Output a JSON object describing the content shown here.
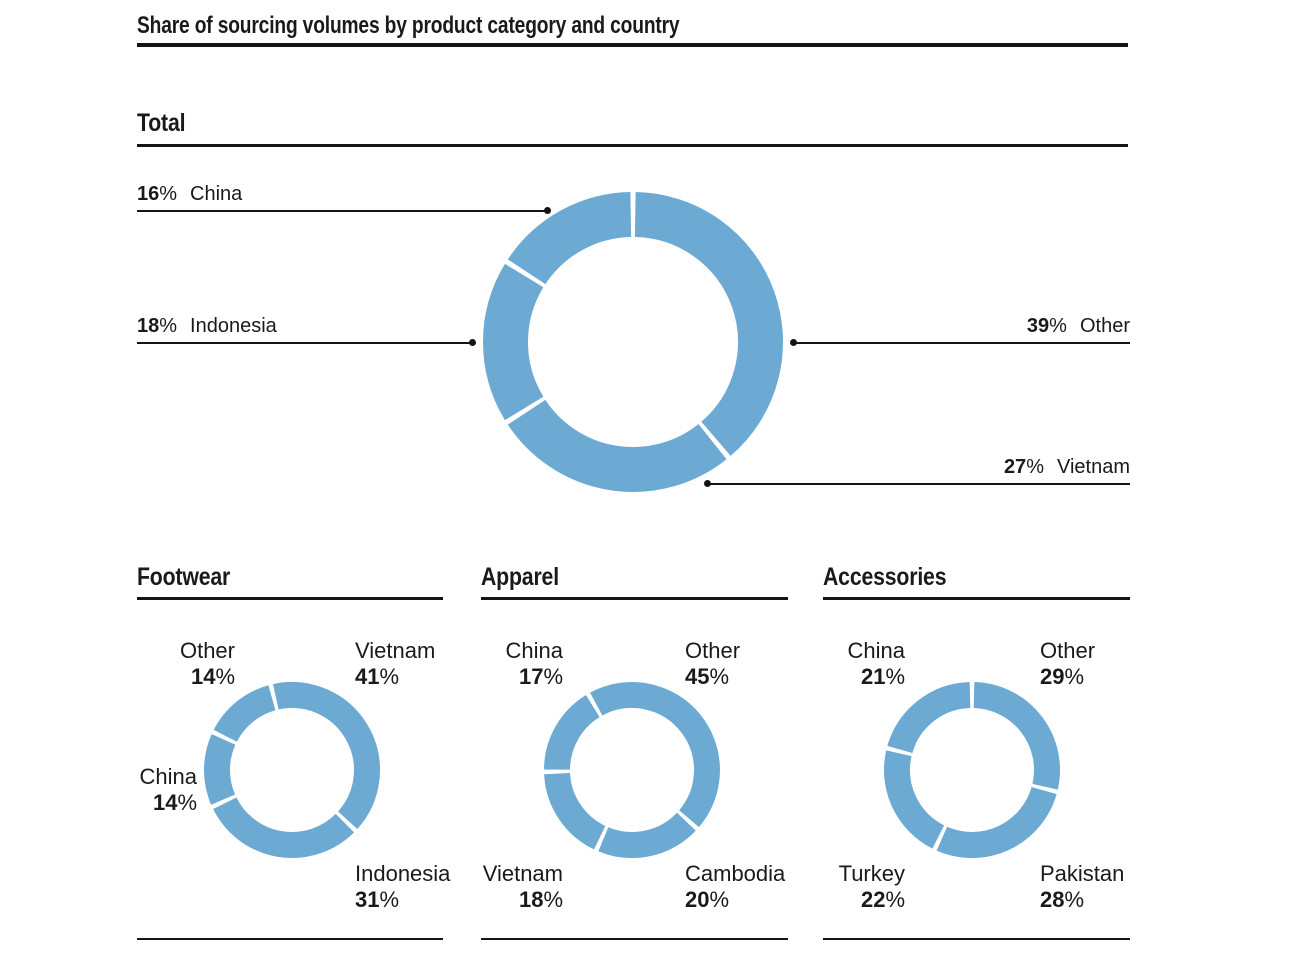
{
  "title": "Share of sourcing volumes by product category and country",
  "percent_sign": "%",
  "colors": {
    "donut_blue": "#6CAAD3",
    "line_black": "#141414"
  },
  "total": {
    "heading": "Total",
    "callouts": [
      {
        "value": "16",
        "name": "China"
      },
      {
        "value": "18",
        "name": "Indonesia"
      },
      {
        "value": "39",
        "name": "Other"
      },
      {
        "value": "27",
        "name": "Vietnam"
      }
    ]
  },
  "categories": [
    {
      "heading": "Footwear",
      "labels": {
        "top_left": {
          "name": "Other",
          "value": "14"
        },
        "top_right": {
          "name": "Vietnam",
          "value": "41"
        },
        "mid_left": {
          "name": "China",
          "value": "14"
        },
        "bottom_right": {
          "name": "Indonesia",
          "value": "31"
        }
      }
    },
    {
      "heading": "Apparel",
      "labels": {
        "top_left": {
          "name": "China",
          "value": "17"
        },
        "top_right": {
          "name": "Other",
          "value": "45"
        },
        "bottom_left": {
          "name": "Vietnam",
          "value": "18"
        },
        "bottom_right": {
          "name": "Cambodia",
          "value": "20"
        }
      }
    },
    {
      "heading": "Accessories",
      "labels": {
        "top_left": {
          "name": "China",
          "value": "21"
        },
        "top_right": {
          "name": "Other",
          "value": "29"
        },
        "bottom_left": {
          "name": "Turkey",
          "value": "22"
        },
        "bottom_right": {
          "name": "Pakistan",
          "value": "28"
        }
      }
    }
  ],
  "chart_data": [
    {
      "type": "pie",
      "style": "donut",
      "title": "Total",
      "labels": [
        "Other",
        "Vietnam",
        "Indonesia",
        "China"
      ],
      "values": [
        39,
        27,
        18,
        16
      ]
    },
    {
      "type": "pie",
      "style": "donut",
      "title": "Footwear",
      "labels": [
        "Vietnam",
        "Indonesia",
        "China",
        "Other"
      ],
      "values": [
        41,
        31,
        14,
        14
      ]
    },
    {
      "type": "pie",
      "style": "donut",
      "title": "Apparel",
      "labels": [
        "Other",
        "Cambodia",
        "Vietnam",
        "China"
      ],
      "values": [
        45,
        20,
        18,
        17
      ]
    },
    {
      "type": "pie",
      "style": "donut",
      "title": "Accessories",
      "labels": [
        "Other",
        "Pakistan",
        "Turkey",
        "China"
      ],
      "values": [
        29,
        28,
        22,
        21
      ]
    }
  ]
}
